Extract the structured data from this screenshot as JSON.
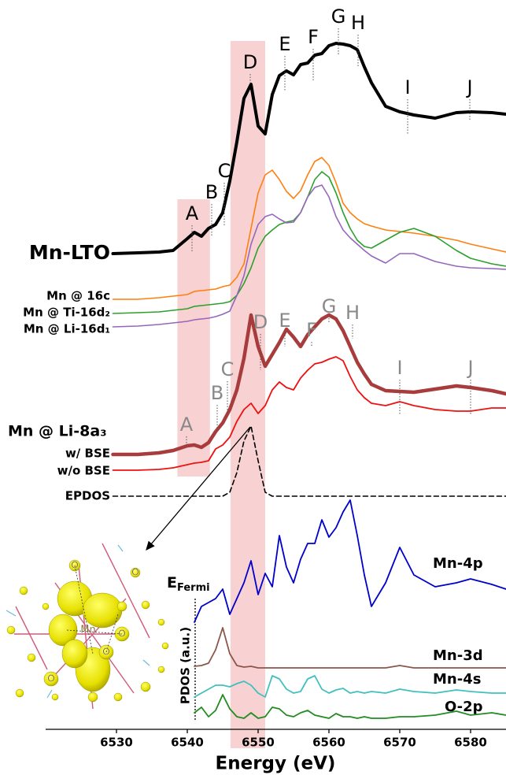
{
  "chart_data": {
    "type": "line",
    "xlabel": "Energy (eV)",
    "ylabel": "PDOS (a.u.)",
    "xlim": [
      6520,
      6585
    ],
    "xticks": [
      6530,
      6540,
      6550,
      6560,
      6570,
      6580
    ],
    "ylim": [
      30,
      956
    ],
    "x": [
      6529.5,
      6533,
      6536,
      6538,
      6540,
      6541,
      6542,
      6543,
      6544,
      6545,
      6546,
      6547,
      6548,
      6549,
      6550,
      6551,
      6552,
      6553,
      6554,
      6555,
      6556,
      6557,
      6558,
      6559,
      6560,
      6561,
      6562,
      6563,
      6564,
      6565,
      6566,
      6568,
      6570,
      6572,
      6575,
      6578,
      6580,
      6583,
      6585
    ],
    "highlights": [
      [
        6538.6,
        6543.2
      ],
      [
        6546.1,
        6551
      ]
    ],
    "series": [
      {
        "name": "Mn-LTO",
        "color": "#000000",
        "width": 4,
        "values": [
          634,
          635,
          636,
          638,
          653,
          661,
          656,
          666,
          671,
          686,
          726,
          776,
          831,
          849,
          796,
          786,
          836,
          860,
          866,
          861,
          874,
          876,
          886,
          888,
          898,
          901,
          900,
          898,
          893,
          871,
          851,
          821,
          814,
          810,
          806,
          813,
          814,
          813,
          811
        ]
      },
      {
        "name": "Mn @ 16c",
        "color": "#ff7f0e",
        "width": 1.6,
        "values": [
          576,
          576,
          578,
          580,
          582,
          586,
          587,
          588,
          589,
          592,
          594,
          604,
          621,
          666,
          711,
          734,
          740,
          728,
          713,
          704,
          714,
          734,
          751,
          756,
          746,
          724,
          698,
          686,
          678,
          672,
          669,
          664,
          662,
          660,
          656,
          651,
          646,
          640,
          636
        ]
      },
      {
        "name": "Mn @ Ti-16d₂",
        "color": "#2ca02c",
        "width": 1.6,
        "values": [
          558,
          559,
          560,
          562,
          564,
          567,
          568,
          569,
          570,
          571,
          573,
          581,
          596,
          616,
          641,
          656,
          664,
          671,
          674,
          676,
          686,
          706,
          728,
          738,
          731,
          711,
          686,
          666,
          651,
          643,
          641,
          651,
          661,
          666,
          656,
          638,
          628,
          621,
          618
        ]
      },
      {
        "name": "Mn @ Li-16d₁",
        "color": "#9467bd",
        "width": 1.6,
        "values": [
          541,
          542,
          544,
          546,
          548,
          550,
          551,
          552,
          554,
          557,
          561,
          581,
          606,
          646,
          671,
          681,
          684,
          678,
          673,
          674,
          686,
          706,
          718,
          721,
          706,
          681,
          664,
          654,
          646,
          638,
          631,
          622,
          634,
          634,
          624,
          618,
          616,
          615,
          614
        ]
      },
      {
        "name": "w/ BSE",
        "color": "#a83c3c",
        "width": 4.5,
        "values": [
          379,
          379,
          381,
          384,
          390,
          391,
          388,
          394,
          408,
          419,
          436,
          461,
          501,
          556,
          516,
          491,
          506,
          521,
          538,
          528,
          516,
          531,
          541,
          551,
          556,
          551,
          536,
          516,
          496,
          481,
          468,
          460,
          459,
          458,
          462,
          466,
          464,
          460,
          456
        ]
      },
      {
        "name": "w/o BSE",
        "color": "#ee1111",
        "width": 1.8,
        "values": [
          359,
          359,
          360,
          362,
          366,
          368,
          369,
          371,
          386,
          391,
          401,
          421,
          436,
          444,
          431,
          441,
          461,
          471,
          464,
          461,
          476,
          486,
          494,
          496,
          500,
          503,
          498,
          478,
          461,
          451,
          444,
          441,
          446,
          441,
          436,
          434,
          434,
          438,
          438
        ]
      },
      {
        "name": "EPDOS",
        "color": "#000000",
        "width": 1.6,
        "dash": true,
        "values": [
          326,
          326,
          326,
          326,
          326,
          326,
          326,
          326,
          326,
          326,
          331,
          356,
          396,
          415,
          371,
          331,
          326,
          326,
          326,
          326,
          326,
          326,
          326,
          326,
          326,
          326,
          326,
          326,
          326,
          326,
          326,
          326,
          326,
          326,
          326,
          326,
          326,
          326,
          326
        ]
      },
      {
        "name": "Mn-4p",
        "color": "#0000cc",
        "width": 1.8,
        "values": [
          null,
          null,
          null,
          null,
          null,
          166,
          186,
          191,
          196,
          208,
          176,
          196,
          216,
          244,
          201,
          228,
          211,
          276,
          236,
          216,
          246,
          266,
          266,
          296,
          274,
          286,
          306,
          321,
          276,
          226,
          186,
          216,
          261,
          226,
          211,
          216,
          221,
          214,
          208
        ]
      },
      {
        "name": "Mn-3d",
        "color": "#8c564b",
        "width": 1.8,
        "values": [
          null,
          null,
          null,
          null,
          null,
          110,
          111,
          114,
          131,
          159,
          126,
          111,
          109,
          110,
          108,
          108,
          108,
          108,
          108,
          108,
          108,
          108,
          108,
          108,
          108,
          108,
          108,
          108,
          108,
          108,
          108,
          108,
          111,
          108,
          108,
          108,
          108,
          108,
          108
        ]
      },
      {
        "name": "Mn-4s",
        "color": "#40c0c0",
        "width": 1.8,
        "values": [
          null,
          null,
          null,
          null,
          null,
          71,
          76,
          81,
          86,
          86,
          84,
          88,
          91,
          86,
          76,
          71,
          98,
          94,
          81,
          76,
          78,
          94,
          98,
          81,
          76,
          80,
          82,
          76,
          78,
          76,
          78,
          76,
          81,
          78,
          76,
          80,
          78,
          76,
          76
        ]
      },
      {
        "name": "O-2p",
        "color": "#228b22",
        "width": 1.8,
        "values": [
          null,
          null,
          null,
          null,
          null,
          51,
          58,
          46,
          54,
          74,
          56,
          46,
          44,
          51,
          44,
          46,
          58,
          56,
          48,
          46,
          51,
          54,
          48,
          46,
          44,
          50,
          46,
          46,
          44,
          46,
          44,
          44,
          46,
          46,
          48,
          53,
          48,
          51,
          48
        ]
      }
    ],
    "group_label": "Mn @ Li-8a₃",
    "fermi": {
      "main": "E",
      "sub": "Fermi"
    },
    "lto_features": [
      "A",
      "B",
      "C",
      "D",
      "E",
      "F",
      "G",
      "H",
      "I",
      "J"
    ],
    "bse_features": [
      "A",
      "B",
      "C",
      "D",
      "E",
      "F",
      "G",
      "H",
      "I",
      "J"
    ],
    "inset": {
      "atoms": [
        "O",
        "O",
        "O",
        "Mn",
        "O",
        "O"
      ]
    }
  }
}
